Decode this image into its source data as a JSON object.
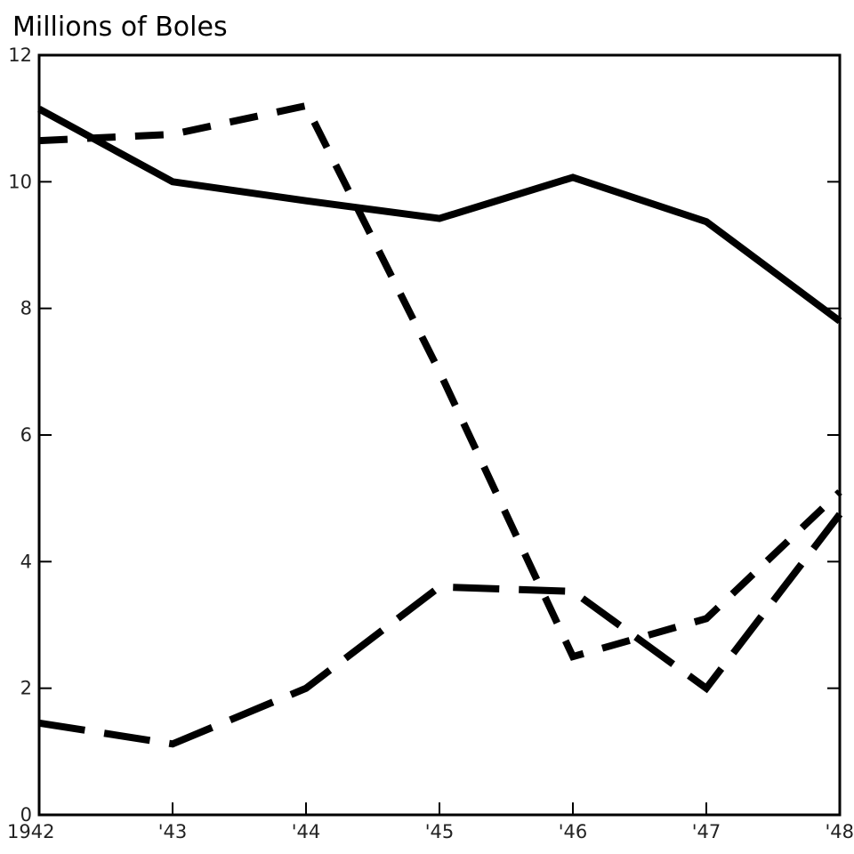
{
  "chart_data": {
    "type": "line",
    "title": "Millions of Boles",
    "xlabel": "",
    "ylabel": "",
    "categories": [
      "1942",
      "'43",
      "'44",
      "'45",
      "'46",
      "'47",
      "'48"
    ],
    "ylim": [
      0,
      12
    ],
    "yticks": [
      0,
      2,
      4,
      6,
      8,
      10,
      12
    ],
    "ytick_labels": [
      "0",
      "2",
      "4",
      "6",
      "8",
      "10",
      "12"
    ],
    "grid": false,
    "series": [
      {
        "style": "solid",
        "color": "#000000",
        "values": [
          11.15,
          10.0,
          9.7,
          9.42,
          10.07,
          9.37,
          7.8
        ]
      },
      {
        "style": "short-dash",
        "color": "#000000",
        "values": [
          10.65,
          10.75,
          11.2,
          7.0,
          2.5,
          3.1,
          5.1
        ]
      },
      {
        "style": "long-dash",
        "color": "#000000",
        "values": [
          1.45,
          1.12,
          2.0,
          3.6,
          3.53,
          2.0,
          4.75
        ]
      }
    ]
  }
}
